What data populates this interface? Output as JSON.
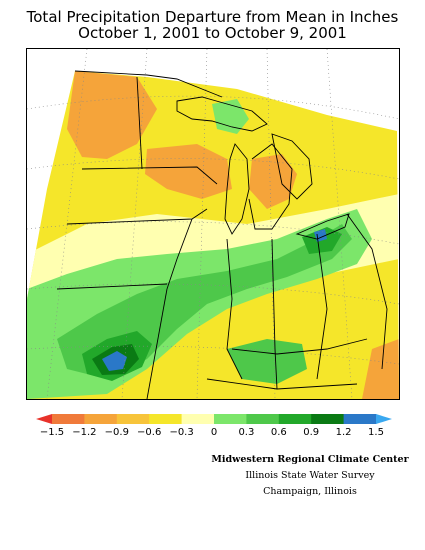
{
  "title": {
    "line1": "Total Precipitation Departure from Mean in Inches",
    "line2": "October 1, 2001 to October 9, 2001"
  },
  "legend": {
    "colors": [
      "#e8322a",
      "#f07a3a",
      "#f5a43a",
      "#f7c43a",
      "#f5e62a",
      "#ffffb0",
      "#7ce66a",
      "#4ec84a",
      "#22a82a",
      "#0a7a14",
      "#2a78c8",
      "#3aa8f0"
    ],
    "labels": [
      "−1.5",
      "−1.2",
      "−0.9",
      "−0.6",
      "−0.3",
      "0",
      "0.3",
      "0.6",
      "0.9",
      "1.2",
      "1.5"
    ]
  },
  "credits": {
    "line1": "Midwestern Regional Climate Center",
    "line2": "Illinois State Water Survey",
    "line3": "Champaign, Illinois"
  }
}
